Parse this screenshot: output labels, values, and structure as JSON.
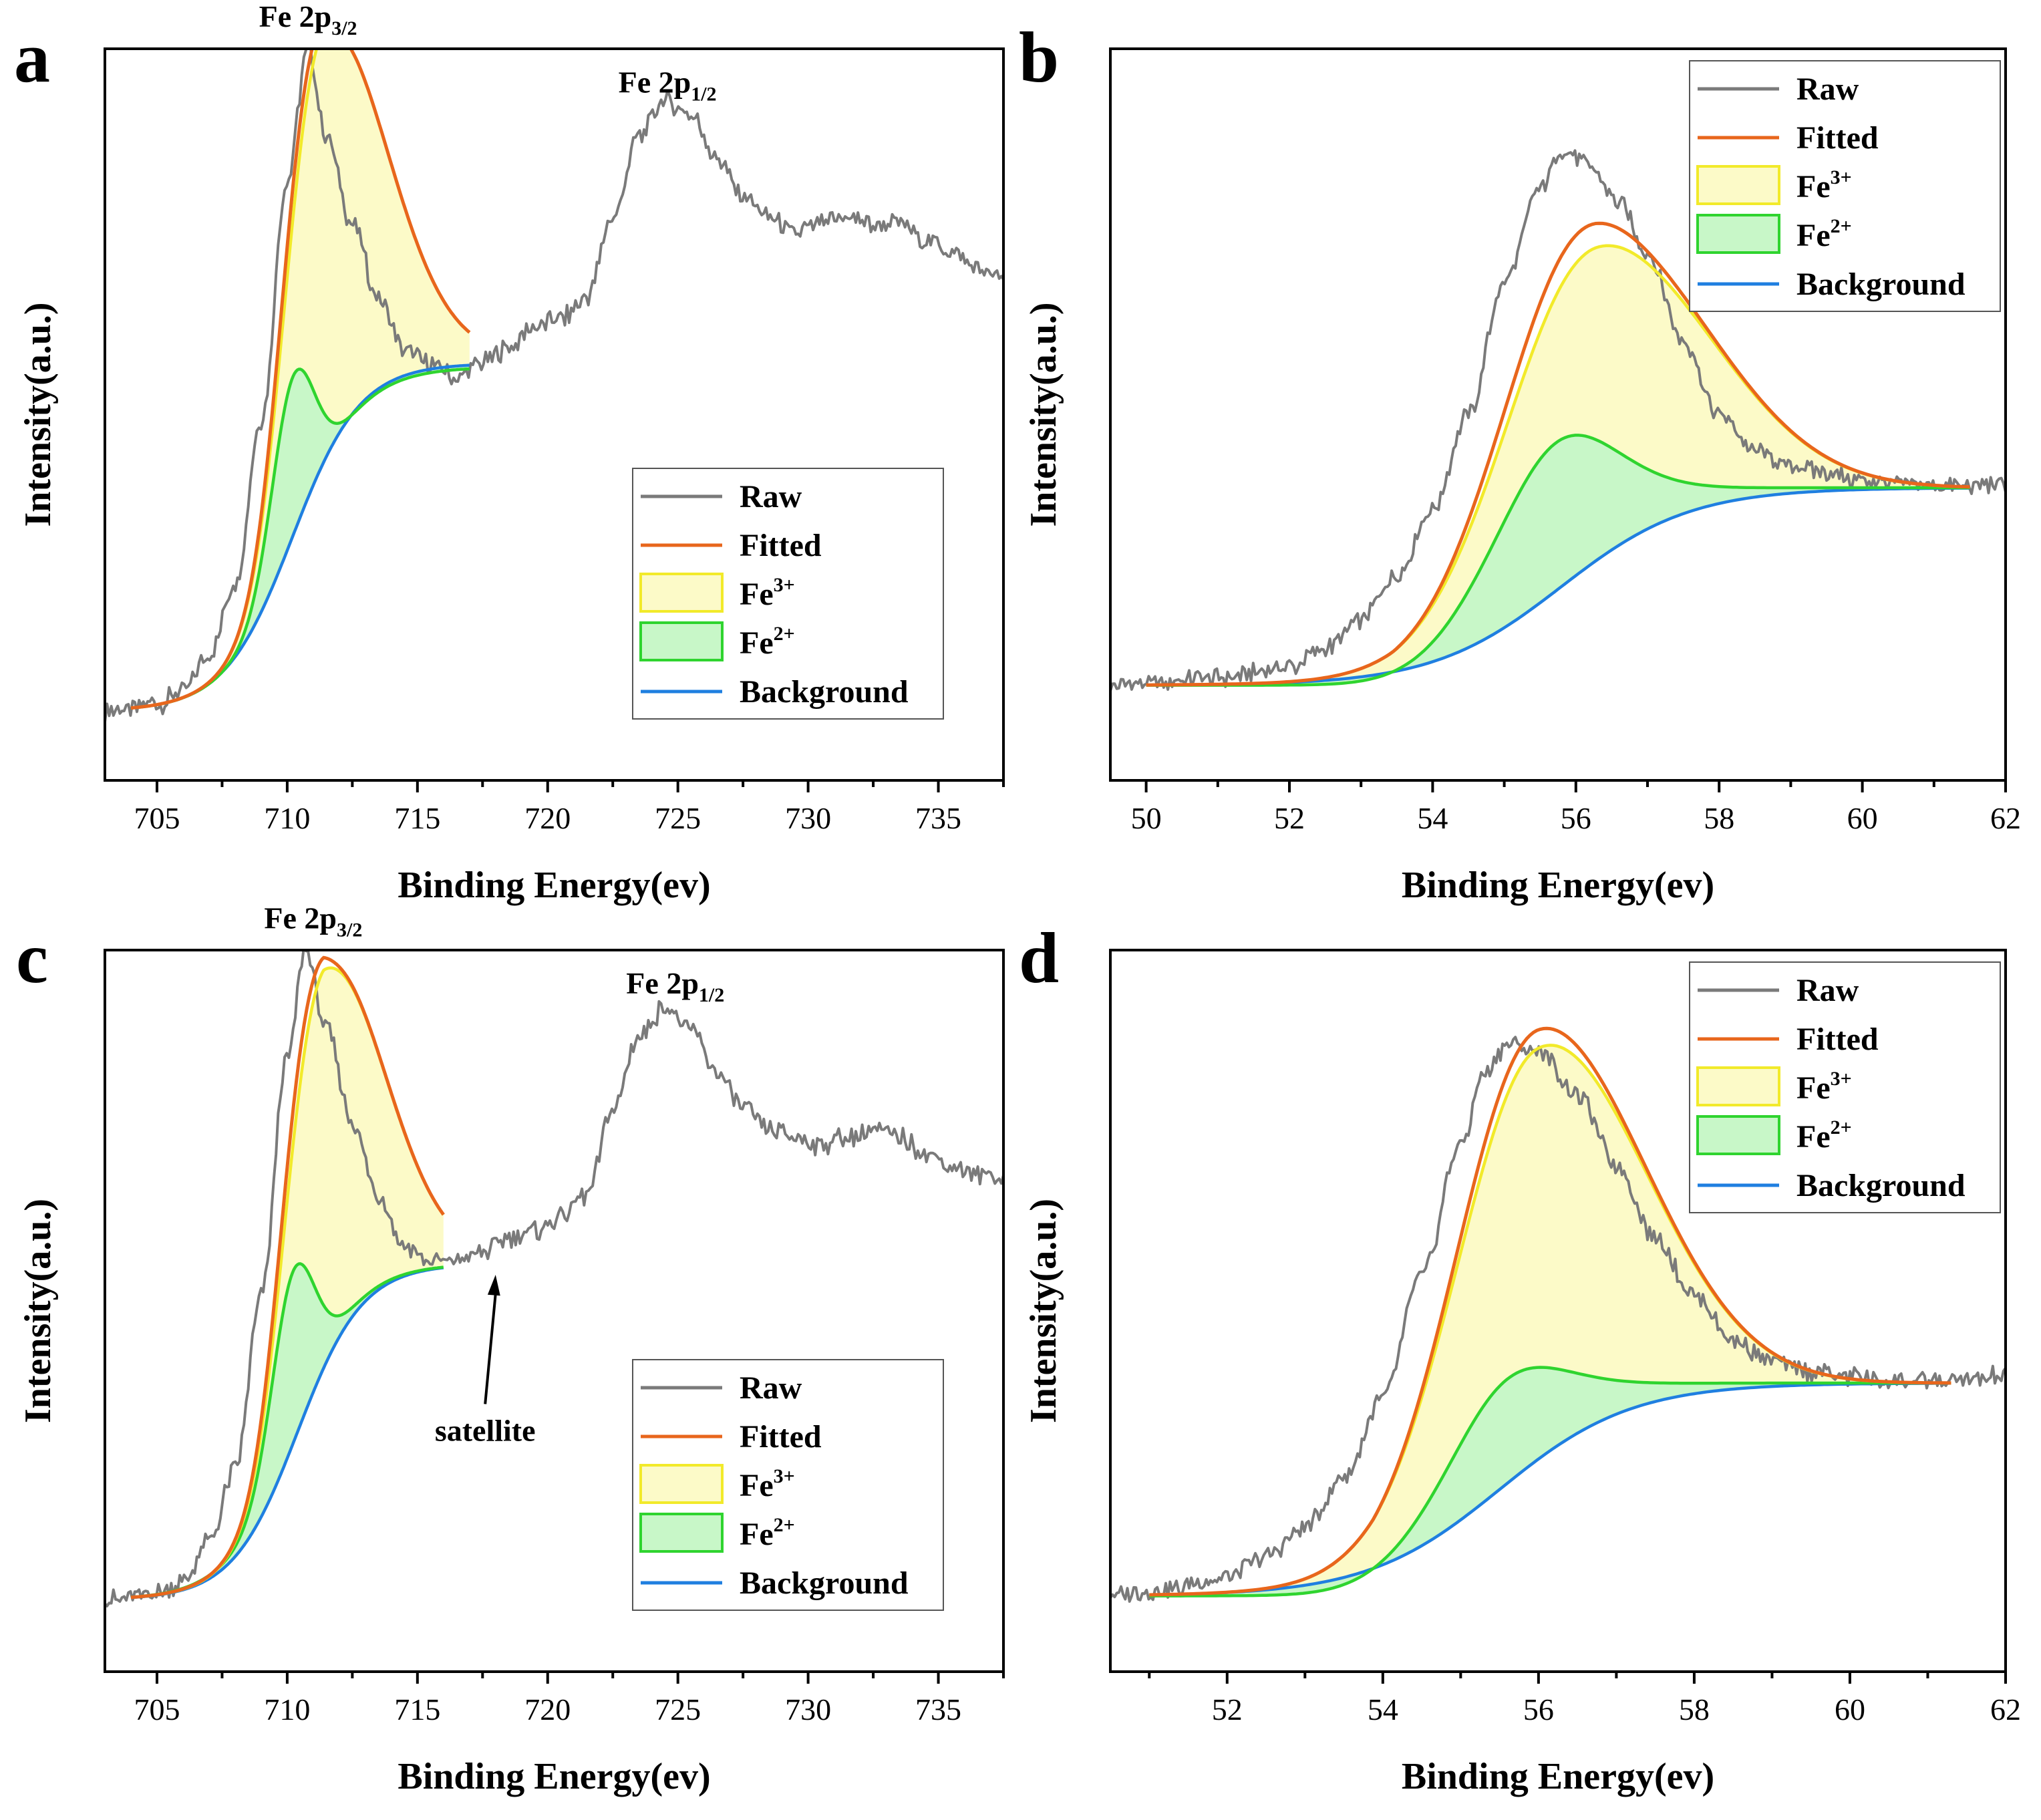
{
  "colors": {
    "raw": "#7a7a7a",
    "fitted": "#e8661c",
    "fe3_line": "#f2ea2a",
    "fe3_fill": "#fcfac8",
    "fe2_line": "#2fd42f",
    "fe2_fill": "#c8f7c8",
    "background": "#1f7fe0",
    "axis": "#000000"
  },
  "chart_data": [
    {
      "panel": "a",
      "type": "line",
      "xlabel": "Binding Energy(ev)",
      "ylabel": "Intensity(a.u.)",
      "xlim": [
        703,
        737.5
      ],
      "ylim": [
        0,
        100
      ],
      "xticks": [
        705,
        710,
        715,
        720,
        725,
        730,
        735
      ],
      "tick_labels": [
        "705",
        "710",
        "715",
        "720",
        "725",
        "730",
        "735"
      ],
      "legend": {
        "placement": "lower-right",
        "entries": [
          "Raw",
          "Fitted",
          "Fe",
          "Fe",
          "Background"
        ],
        "superscripts": [
          "",
          "",
          "3+",
          "2+",
          ""
        ]
      },
      "annotations": [
        {
          "text": "Fe 2p",
          "sub": "3/2",
          "x": 710.8,
          "y": 103
        },
        {
          "text": "Fe 2p",
          "sub": "1/2",
          "x": 724.6,
          "y": 94
        }
      ],
      "fit_range": [
        704,
        717
      ],
      "background": {
        "low": 9.5,
        "high": 57,
        "center": 710.2,
        "width": 1.3
      },
      "fe3": {
        "center": 711.4,
        "amp": 45,
        "sigma_left": 1.3,
        "sigma_right": 2.3,
        "tail": 14,
        "tail_width": 3
      },
      "fe2": {
        "center": 710.2,
        "amp": 22,
        "sigma": 0.8,
        "tail_width": 2.6,
        "tail_height": 56.5
      },
      "raw": {
        "x": [
          703,
          704,
          705,
          706,
          707,
          708,
          709,
          710,
          710.8,
          711.5,
          712.5,
          713.5,
          714.5,
          715.5,
          716.5,
          717.5,
          718.5,
          719.5,
          720.5,
          721.5,
          722.5,
          723.5,
          724.5,
          725.5,
          726.5,
          727.5,
          728.5,
          729.5,
          730.5,
          731.5,
          732.5,
          733.5,
          734.5,
          735.5,
          736.5,
          737.5
        ],
        "y": [
          9.5,
          9.8,
          10.5,
          12,
          17,
          27,
          49,
          82,
          100,
          88,
          76,
          66,
          59,
          57,
          55,
          57,
          59,
          62,
          63,
          66,
          77,
          88,
          93,
          91,
          85,
          80,
          77,
          75,
          76,
          77,
          76,
          76,
          74,
          72,
          70,
          68.5
        ],
        "noise": 0.9
      }
    },
    {
      "panel": "b",
      "type": "line",
      "xlabel": "Binding Energy(ev)",
      "ylabel": "Intensity(a.u.)",
      "xlim": [
        49.5,
        62
      ],
      "ylim": [
        0,
        100
      ],
      "xticks": [
        50,
        52,
        54,
        56,
        58,
        60,
        62
      ],
      "tick_labels": [
        "50",
        "52",
        "54",
        "56",
        "58",
        "60",
        "62"
      ],
      "legend": {
        "placement": "top-right",
        "entries": [
          "Raw",
          "Fitted",
          "Fe",
          "Fe",
          "Background"
        ],
        "superscripts": [
          "",
          "",
          "3+",
          "2+",
          ""
        ]
      },
      "annotations": [],
      "fit_range": [
        50,
        61.5
      ],
      "background": {
        "low": 13,
        "high": 40,
        "center": 55.8,
        "width": 0.9
      },
      "fe3": {
        "center": 56.3,
        "amp": 37,
        "sigma_left": 1.25,
        "sigma_right": 1.55,
        "tail": 0,
        "tail_width": 1
      },
      "fe2": {
        "center": 55.4,
        "amp": 16,
        "sigma": 0.9,
        "tail_width": 0.9,
        "tail_height": 40
      },
      "raw": {
        "x": [
          49.5,
          50,
          51,
          52,
          52.5,
          53,
          53.5,
          54,
          54.5,
          55,
          55.5,
          55.8,
          56.2,
          56.6,
          57,
          57.5,
          58,
          58.5,
          59,
          59.5,
          60,
          60.5,
          61,
          61.5,
          62
        ],
        "y": [
          13,
          13.3,
          14,
          15.5,
          18,
          22,
          28,
          37,
          50,
          68,
          81,
          86,
          84,
          79,
          72,
          60,
          50,
          45,
          43,
          42,
          41,
          40.5,
          40.3,
          40.2,
          40.5
        ],
        "noise": 0.8
      }
    },
    {
      "panel": "c",
      "type": "line",
      "xlabel": "Binding Energy(ev)",
      "ylabel": "Intensity(a.u.)",
      "xlim": [
        703,
        737.5
      ],
      "ylim": [
        0,
        100
      ],
      "xticks": [
        705,
        710,
        715,
        720,
        725,
        730,
        735
      ],
      "tick_labels": [
        "705",
        "710",
        "715",
        "720",
        "725",
        "730",
        "735"
      ],
      "legend": {
        "placement": "lower-right",
        "entries": [
          "Raw",
          "Fitted",
          "Fe",
          "Fe",
          "Background"
        ],
        "superscripts": [
          "",
          "",
          "3+",
          "2+",
          ""
        ]
      },
      "annotations": [
        {
          "text": "Fe 2p",
          "sub": "3/2",
          "x": 711,
          "y": 103
        },
        {
          "text": "Fe 2p",
          "sub": "1/2",
          "x": 724.9,
          "y": 94
        },
        {
          "text": "satellite",
          "sub": "",
          "x": 717.6,
          "y": 32,
          "arrow_to": [
            718,
            55
          ]
        }
      ],
      "fit_range": [
        704,
        716
      ],
      "background": {
        "low": 10,
        "high": 56.5,
        "center": 710.4,
        "width": 1.25
      },
      "fe3": {
        "center": 711.4,
        "amp": 42,
        "sigma_left": 1.3,
        "sigma_right": 2.2,
        "tail": 12,
        "tail_width": 3
      },
      "fe2": {
        "center": 710.2,
        "amp": 22,
        "sigma": 0.8,
        "tail_width": 2.5,
        "tail_height": 56.5
      },
      "raw": {
        "x": [
          703,
          704,
          705,
          706,
          707,
          708,
          709,
          710,
          710.7,
          711.5,
          712.5,
          713.5,
          714.5,
          715.5,
          716.5,
          717.5,
          718.5,
          719.5,
          720.5,
          721.5,
          722.5,
          723.5,
          724.5,
          725.5,
          726.5,
          727.5,
          728.5,
          729.5,
          730.5,
          731.5,
          732.5,
          733.5,
          734.5,
          735.5,
          736.5,
          737.5
        ],
        "y": [
          10,
          10.2,
          11,
          12.5,
          18,
          28,
          52,
          85,
          100,
          89,
          76,
          66,
          59,
          57,
          57,
          58,
          60,
          61,
          63,
          66,
          78,
          88,
          92,
          89,
          83,
          78,
          75,
          74,
          73,
          74,
          75,
          74,
          72,
          70,
          69,
          68.5
        ],
        "noise": 0.9
      }
    },
    {
      "panel": "d",
      "type": "line",
      "xlabel": "Binding Energy(ev)",
      "ylabel": "Intensity(a.u.)",
      "xlim": [
        50.5,
        62
      ],
      "ylim": [
        0,
        100
      ],
      "xticks": [
        52,
        54,
        56,
        58,
        60,
        62
      ],
      "tick_labels": [
        "52",
        "54",
        "56",
        "58",
        "60",
        "62"
      ],
      "legend": {
        "placement": "top-right",
        "entries": [
          "Raw",
          "Fitted",
          "Fe",
          "Fe",
          "Background"
        ],
        "superscripts": [
          "",
          "",
          "3+",
          "2+",
          ""
        ]
      },
      "annotations": [],
      "fit_range": [
        51,
        61.3
      ],
      "background": {
        "low": 10.5,
        "high": 40,
        "center": 55.5,
        "width": 0.85
      },
      "fe3": {
        "center": 56,
        "amp": 52.5,
        "sigma_left": 1.05,
        "sigma_right": 1.35,
        "tail": 0,
        "tail_width": 1
      },
      "fe2": {
        "center": 55.2,
        "amp": 10,
        "sigma": 0.8,
        "tail_width": 0.85,
        "tail_height": 40
      },
      "raw": {
        "x": [
          50.5,
          51,
          52,
          52.5,
          53,
          53.5,
          54,
          54.5,
          55,
          55.3,
          55.6,
          56,
          56.5,
          57,
          57.5,
          58,
          58.5,
          59,
          59.5,
          60,
          60.5,
          61,
          61.5,
          62
        ],
        "y": [
          10.5,
          11,
          13,
          16,
          20,
          27,
          38,
          55,
          73,
          83,
          87,
          86,
          80,
          70,
          60,
          52,
          46,
          43,
          41.5,
          40.8,
          40.4,
          40.2,
          40.5,
          41
        ],
        "noise": 0.9
      }
    }
  ]
}
